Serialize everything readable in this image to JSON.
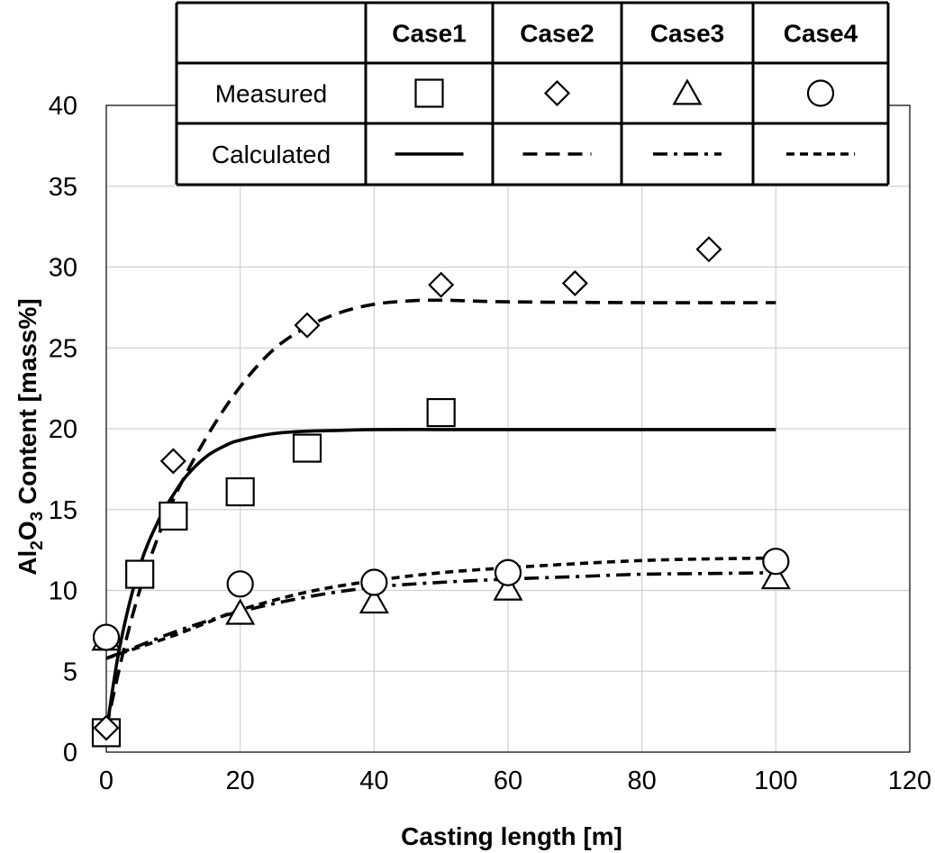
{
  "chart_data": {
    "type": "scatter",
    "xlabel": "Casting length [m]",
    "ylabel_parts": [
      "Al",
      "2",
      "O",
      "3",
      " Content [mass%]"
    ],
    "xlim": [
      0,
      120
    ],
    "ylim": [
      0,
      40
    ],
    "xticks": [
      0,
      20,
      40,
      60,
      80,
      100,
      120
    ],
    "yticks": [
      0,
      5,
      10,
      15,
      20,
      25,
      30,
      35,
      40
    ],
    "grid": true,
    "legend": {
      "placement": "top",
      "columns": [
        "Case1",
        "Case2",
        "Case3",
        "Case4"
      ],
      "row_labels": [
        "Measured",
        "Calculated"
      ]
    },
    "series": [
      {
        "name": "Case1",
        "marker": "square",
        "line_style": "solid",
        "measured": [
          [
            0,
            1.2
          ],
          [
            5,
            11
          ],
          [
            10,
            14.6
          ],
          [
            20,
            16.1
          ],
          [
            30,
            18.8
          ],
          [
            50,
            21
          ]
        ],
        "calculated": [
          [
            0,
            1.2
          ],
          [
            2,
            6.5
          ],
          [
            5,
            11.5
          ],
          [
            8,
            14.5
          ],
          [
            10,
            15.9
          ],
          [
            12,
            17.1
          ],
          [
            15,
            18.3
          ],
          [
            18,
            19.0
          ],
          [
            20,
            19.3
          ],
          [
            25,
            19.7
          ],
          [
            30,
            19.85
          ],
          [
            35,
            19.9
          ],
          [
            40,
            19.95
          ],
          [
            50,
            19.95
          ],
          [
            60,
            19.95
          ],
          [
            80,
            19.95
          ],
          [
            100,
            19.95
          ]
        ]
      },
      {
        "name": "Case2",
        "marker": "diamond",
        "line_style": "dashed",
        "measured": [
          [
            0,
            1.5
          ],
          [
            10,
            18
          ],
          [
            30,
            26.4
          ],
          [
            50,
            28.9
          ],
          [
            70,
            29
          ],
          [
            90,
            31.1
          ]
        ],
        "calculated": [
          [
            0,
            1.5
          ],
          [
            3,
            7
          ],
          [
            6,
            11.3
          ],
          [
            10,
            15.6
          ],
          [
            15,
            19.5
          ],
          [
            20,
            22.6
          ],
          [
            25,
            24.9
          ],
          [
            30,
            26.3
          ],
          [
            35,
            27.2
          ],
          [
            40,
            27.7
          ],
          [
            45,
            27.9
          ],
          [
            50,
            27.95
          ],
          [
            60,
            27.85
          ],
          [
            80,
            27.8
          ],
          [
            100,
            27.8
          ]
        ]
      },
      {
        "name": "Case3",
        "marker": "triangle",
        "line_style": "dash-dot",
        "measured": [
          [
            0,
            7
          ],
          [
            20,
            8.6
          ],
          [
            40,
            9.3
          ],
          [
            60,
            10.1
          ],
          [
            100,
            10.8
          ]
        ],
        "calculated": [
          [
            0,
            5.8
          ],
          [
            5,
            6.6
          ],
          [
            10,
            7.4
          ],
          [
            15,
            8.1
          ],
          [
            20,
            8.7
          ],
          [
            30,
            9.6
          ],
          [
            40,
            10.2
          ],
          [
            50,
            10.5
          ],
          [
            60,
            10.7
          ],
          [
            70,
            10.85
          ],
          [
            80,
            11.0
          ],
          [
            90,
            11.05
          ],
          [
            100,
            11.1
          ]
        ]
      },
      {
        "name": "Case4",
        "marker": "circle",
        "line_style": "short-dash",
        "measured": [
          [
            0,
            7.1
          ],
          [
            20,
            10.4
          ],
          [
            40,
            10.5
          ],
          [
            60,
            11.1
          ],
          [
            100,
            11.8
          ]
        ],
        "calculated": [
          [
            0,
            5.8
          ],
          [
            5,
            6.5
          ],
          [
            10,
            7.2
          ],
          [
            15,
            8.0
          ],
          [
            20,
            8.8
          ],
          [
            30,
            9.9
          ],
          [
            40,
            10.6
          ],
          [
            50,
            11.1
          ],
          [
            60,
            11.4
          ],
          [
            70,
            11.65
          ],
          [
            80,
            11.85
          ],
          [
            90,
            11.95
          ],
          [
            100,
            12.0
          ]
        ]
      }
    ],
    "colors": {
      "line": "#000000",
      "grid": "#d0d0d0",
      "background": "#ffffff"
    }
  }
}
